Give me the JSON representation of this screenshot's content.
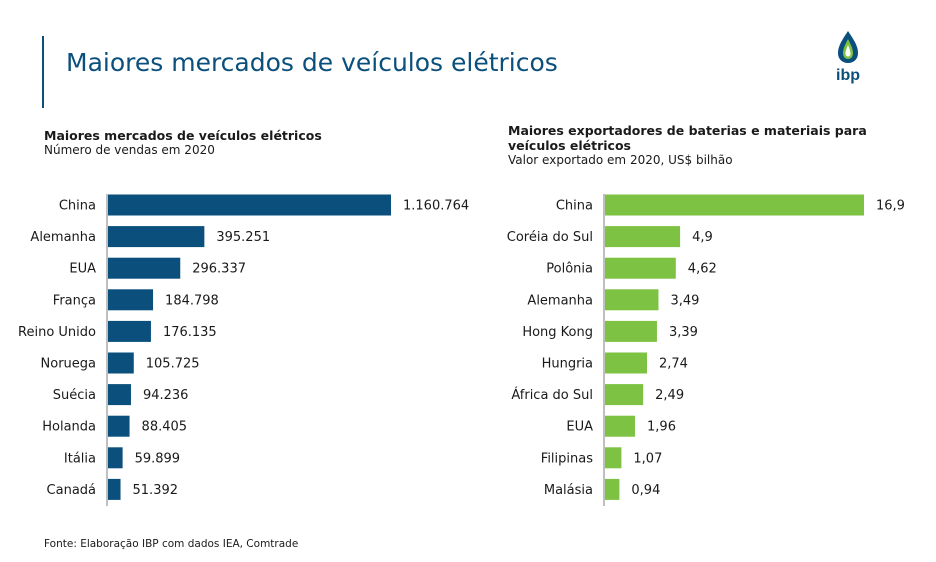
{
  "page": {
    "title": "Maiores mercados de veículos elétricos",
    "logo_text": "ibp",
    "source": "Fonte: Elaboração IBP com dados IEA,  Comtrade"
  },
  "colors": {
    "primary": "#0b4f7c",
    "left_bars": "#0b4f7c",
    "right_bars": "#7dc242",
    "axis": "#7f7f7f"
  },
  "chart_data": [
    {
      "type": "bar",
      "orientation": "horizontal",
      "title": "Maiores mercados de veículos elétricos",
      "subtitle": "Número de vendas em 2020",
      "categories": [
        "China",
        "Alemanha",
        "EUA",
        "França",
        "Reino Unido",
        "Noruega",
        "Suécia",
        "Holanda",
        "Itália",
        "Canadá"
      ],
      "values": [
        1160764,
        395251,
        296337,
        184798,
        176135,
        105725,
        94236,
        88405,
        59899,
        51392
      ],
      "labels": [
        "1.160.764",
        "395.251",
        "296.337",
        "184.798",
        "176.135",
        "105.725",
        "94.236",
        "88.405",
        "59.899",
        "51.392"
      ],
      "xlim": [
        0,
        1160764
      ]
    },
    {
      "type": "bar",
      "orientation": "horizontal",
      "title": "Maiores exportadores de baterias e materiais para veículos elétricos",
      "subtitle": "Valor exportado em 2020, US$ bilhão",
      "categories": [
        "China",
        "Coréia do Sul",
        "Polônia",
        "Alemanha",
        "Hong Kong",
        "Hungria",
        "África do Sul",
        "EUA",
        "Filipinas",
        "Malásia"
      ],
      "values": [
        16.9,
        4.9,
        4.62,
        3.49,
        3.39,
        2.74,
        2.49,
        1.96,
        1.07,
        0.94
      ],
      "labels": [
        "16,9",
        "4,9",
        "4,62",
        "3,49",
        "3,39",
        "2,74",
        "2,49",
        "1,96",
        "1,07",
        "0,94"
      ],
      "xlim": [
        0,
        16.9
      ]
    }
  ]
}
